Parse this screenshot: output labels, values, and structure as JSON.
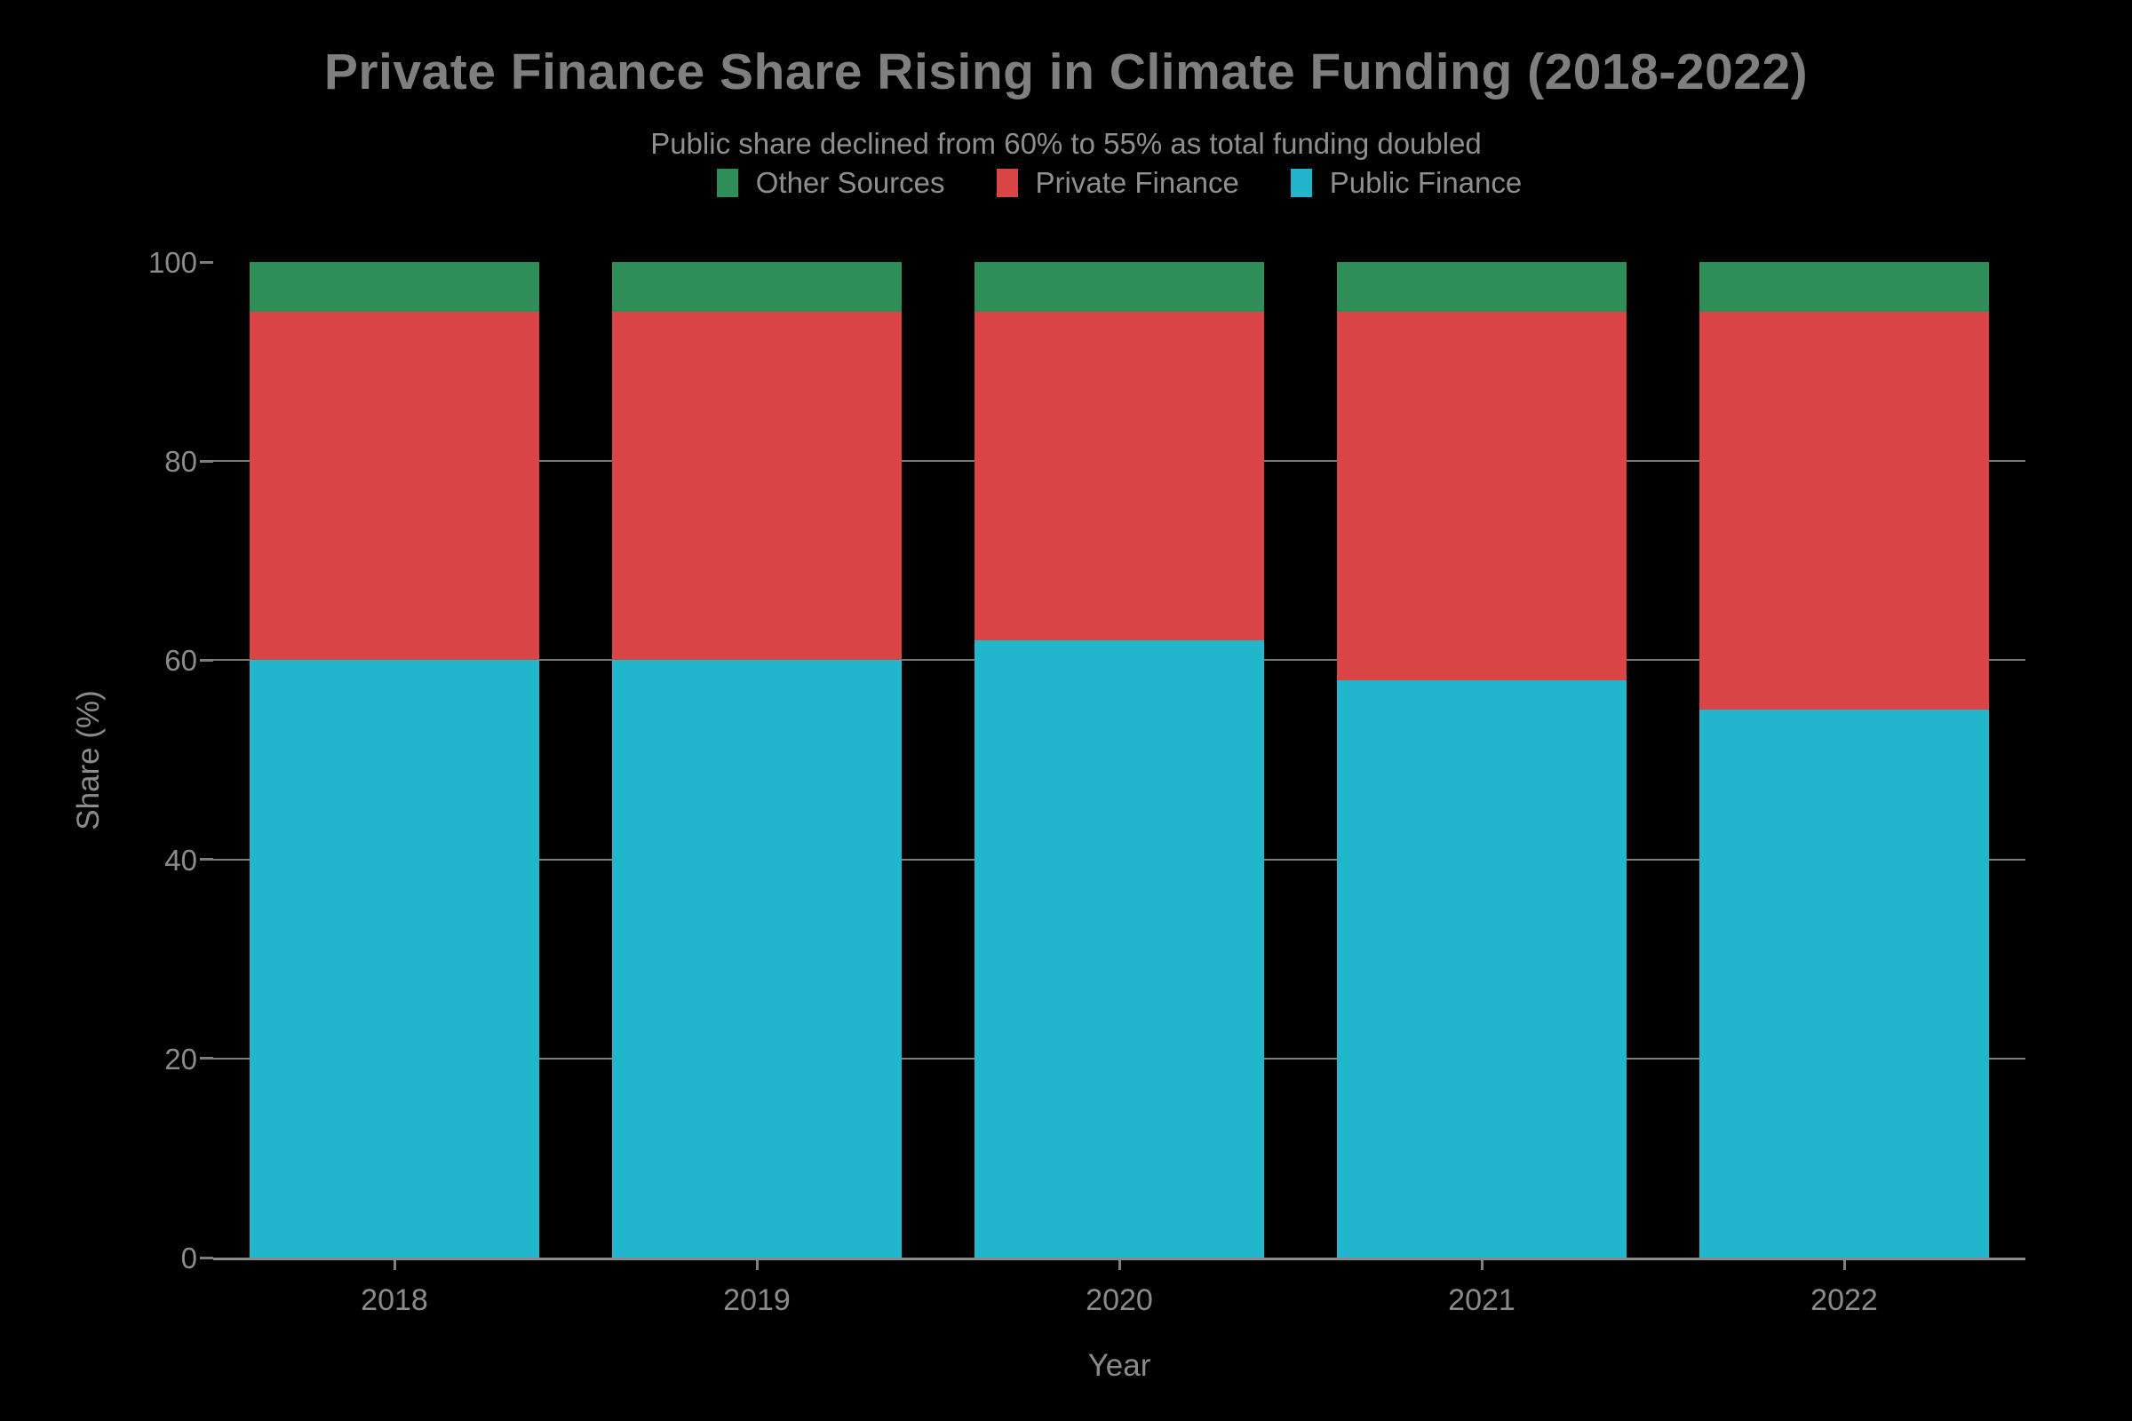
{
  "chart": {
    "title": "Private Finance Share Rising in Climate Funding (2018-2022)",
    "subtitle": "Public share declined from 60% to 55% as total funding doubled"
  },
  "chart_data": {
    "type": "bar",
    "stacked": true,
    "title": "Private Finance Share Rising in Climate Funding (2018-2022)",
    "subtitle": "Public share declined from 60% to 55% as total funding doubled",
    "categories": [
      "2018",
      "2019",
      "2020",
      "2021",
      "2022"
    ],
    "series": [
      {
        "name": "Public Finance",
        "color": "#22b6cc",
        "values": [
          60,
          60,
          62,
          58,
          55
        ]
      },
      {
        "name": "Private Finance",
        "color": "#d94545",
        "values": [
          35,
          35,
          33,
          37,
          40
        ]
      },
      {
        "name": "Other Sources",
        "color": "#2f8e58",
        "values": [
          5,
          5,
          5,
          5,
          5
        ]
      }
    ],
    "legend": [
      {
        "label": "Other Sources",
        "color": "#2f8e58"
      },
      {
        "label": "Private Finance",
        "color": "#d94545"
      },
      {
        "label": "Public Finance",
        "color": "#22b6cc"
      }
    ],
    "legend_position": "top-center",
    "xlabel": "Year",
    "ylabel": "Share (%)",
    "ylim": [
      0,
      100
    ],
    "yticks": [
      0,
      20,
      40,
      60,
      80,
      100
    ],
    "gridlines": [
      20,
      40,
      60,
      80
    ],
    "background_color": "#000000",
    "grid_color": "#7a7a7a",
    "text_color": "#8b8b8b",
    "title_color": "#7f7f7f"
  }
}
